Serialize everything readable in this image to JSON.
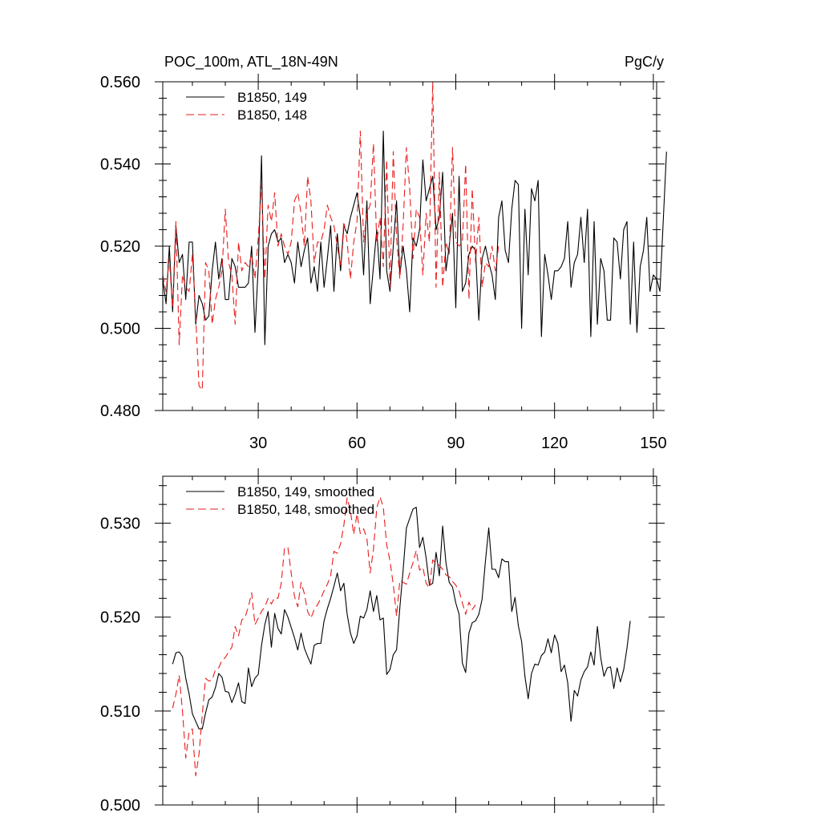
{
  "chart_data": [
    {
      "type": "line",
      "title": "POC_100m, ATL_18N-49N",
      "units": "PgC/y",
      "xlim": [
        1,
        151
      ],
      "ylim": [
        0.48,
        0.56
      ],
      "xticks": [
        30,
        60,
        90,
        120,
        150
      ],
      "yticks": [
        0.48,
        0.5,
        0.52,
        0.54,
        0.56
      ],
      "ytick_labels": [
        "0.480",
        "0.500",
        "0.520",
        "0.540",
        "0.560"
      ],
      "legend_position": "top-left",
      "series": [
        {
          "name": "B1850, 149",
          "color": "#000000",
          "dash": "solid",
          "x_start": 1,
          "values": [
            0.512,
            0.506,
            0.52,
            0.504,
            0.525,
            0.516,
            0.518,
            0.507,
            0.521,
            0.521,
            0.501,
            0.508,
            0.506,
            0.502,
            0.503,
            0.514,
            0.521,
            0.512,
            0.517,
            0.507,
            0.507,
            0.517,
            0.515,
            0.51,
            0.51,
            0.51,
            0.511,
            0.52,
            0.499,
            0.515,
            0.542,
            0.496,
            0.52,
            0.523,
            0.524,
            0.521,
            0.522,
            0.516,
            0.518,
            0.516,
            0.511,
            0.521,
            0.515,
            0.519,
            0.522,
            0.511,
            0.515,
            0.509,
            0.521,
            0.51,
            0.517,
            0.525,
            0.509,
            0.523,
            0.514,
            0.525,
            0.523,
            0.527,
            0.53,
            0.533,
            0.527,
            0.513,
            0.531,
            0.506,
            0.515,
            0.524,
            0.512,
            0.548,
            0.514,
            0.509,
            0.52,
            0.531,
            0.513,
            0.52,
            0.514,
            0.504,
            0.522,
            0.52,
            0.524,
            0.541,
            0.531,
            0.534,
            0.537,
            0.524,
            0.527,
            0.538,
            0.514,
            0.52,
            0.528,
            0.505,
            0.537,
            0.509,
            0.511,
            0.518,
            0.52,
            0.519,
            0.502,
            0.517,
            0.52,
            0.516,
            0.513,
            0.507,
            0.527,
            0.531,
            0.519,
            0.516,
            0.529,
            0.536,
            0.535,
            0.5,
            0.529,
            0.513,
            0.534,
            0.531,
            0.536,
            0.498,
            0.518,
            0.513,
            0.507,
            0.514,
            0.514,
            0.515,
            0.517,
            0.526,
            0.51,
            0.516,
            0.518,
            0.527,
            0.516,
            0.529,
            0.498,
            0.526,
            0.501,
            0.517,
            0.514,
            0.502,
            0.502,
            0.522,
            0.521,
            0.512,
            0.524,
            0.526,
            0.501,
            0.521,
            0.499,
            0.515,
            0.519,
            0.527,
            0.509,
            0.513,
            0.512,
            0.509,
            0.526,
            0.543
          ]
        },
        {
          "name": "B1850, 148",
          "color": "#e81c1c",
          "dash": "dashed",
          "x_start": 1,
          "values": [
            0.513,
            0.509,
            0.517,
            0.505,
            0.526,
            0.496,
            0.513,
            0.51,
            0.509,
            0.518,
            0.503,
            0.486,
            0.485,
            0.516,
            0.514,
            0.501,
            0.507,
            0.51,
            0.514,
            0.529,
            0.516,
            0.513,
            0.501,
            0.521,
            0.514,
            0.516,
            0.515,
            0.518,
            0.512,
            0.522,
            0.535,
            0.512,
            0.53,
            0.526,
            0.533,
            0.52,
            0.523,
            0.52,
            0.518,
            0.521,
            0.531,
            0.533,
            0.528,
            0.52,
            0.537,
            0.531,
            0.516,
            0.521,
            0.521,
            0.524,
            0.53,
            0.527,
            0.525,
            0.52,
            0.515,
            0.526,
            0.521,
            0.512,
            0.521,
            0.526,
            0.548,
            0.521,
            0.528,
            0.53,
            0.545,
            0.521,
            0.527,
            0.515,
            0.541,
            0.51,
            0.543,
            0.522,
            0.512,
            0.525,
            0.544,
            0.534,
            0.517,
            0.529,
            0.527,
            0.513,
            0.528,
            0.521,
            0.56,
            0.51,
            0.538,
            0.51,
            0.521,
            0.518,
            0.544,
            0.521,
            0.52,
            0.521,
            0.54,
            0.507,
            0.534,
            0.516,
            0.527,
            0.51,
            0.516,
            0.515,
            0.52,
            0.514,
            0.52
          ]
        }
      ]
    },
    {
      "type": "line",
      "xlim": [
        1,
        151
      ],
      "ylim": [
        0.5,
        0.535
      ],
      "xticks": [
        30,
        60,
        90,
        120,
        150
      ],
      "yticks": [
        0.5,
        0.51,
        0.52,
        0.53
      ],
      "ytick_labels": [
        "0.500",
        "0.510",
        "0.520",
        "0.530"
      ],
      "legend_position": "top-left",
      "series": [
        {
          "name": "B1850, 149, smoothed",
          "color": "#000000",
          "dash": "solid",
          "x_start": 4,
          "values": [
            0.515,
            0.5162,
            0.5163,
            0.5158,
            0.5135,
            0.5118,
            0.5097,
            0.5089,
            0.5081,
            0.5081,
            0.5098,
            0.5112,
            0.5115,
            0.5125,
            0.514,
            0.5136,
            0.5121,
            0.512,
            0.5109,
            0.5118,
            0.513,
            0.511,
            0.5108,
            0.5146,
            0.5126,
            0.5135,
            0.5139,
            0.517,
            0.5192,
            0.5206,
            0.5168,
            0.5204,
            0.5188,
            0.5182,
            0.5208,
            0.52,
            0.5189,
            0.5178,
            0.5165,
            0.5183,
            0.5167,
            0.5158,
            0.515,
            0.517,
            0.5172,
            0.5172,
            0.5196,
            0.5209,
            0.522,
            0.5233,
            0.5247,
            0.5228,
            0.5236,
            0.5203,
            0.5183,
            0.5172,
            0.518,
            0.5201,
            0.5199,
            0.5208,
            0.5228,
            0.5206,
            0.5223,
            0.5197,
            0.5199,
            0.5139,
            0.5144,
            0.516,
            0.5165,
            0.521,
            0.525,
            0.5295,
            0.5305,
            0.5315,
            0.5317,
            0.5274,
            0.5285,
            0.5263,
            0.5234,
            0.5236,
            0.5269,
            0.5244,
            0.5297,
            0.5258,
            0.5237,
            0.5232,
            0.5215,
            0.5203,
            0.5151,
            0.5141,
            0.5183,
            0.5194,
            0.5196,
            0.5203,
            0.5219,
            0.526,
            0.5295,
            0.5251,
            0.5251,
            0.5242,
            0.5262,
            0.5259,
            0.5259,
            0.5206,
            0.5221,
            0.5191,
            0.5174,
            0.5137,
            0.5113,
            0.514,
            0.515,
            0.5149,
            0.5159,
            0.5163,
            0.5177,
            0.5162,
            0.5181,
            0.5172,
            0.5142,
            0.5149,
            0.513,
            0.5089,
            0.5122,
            0.5116,
            0.5133,
            0.5142,
            0.5147,
            0.5163,
            0.5149,
            0.519,
            0.5157,
            0.5137,
            0.5146,
            0.5147,
            0.5124,
            0.5146,
            0.5131,
            0.5144,
            0.5167,
            0.5196
          ]
        },
        {
          "name": "B1850, 148, smoothed",
          "color": "#e81c1c",
          "dash": "dashed",
          "x_start": 4,
          "values": [
            0.5103,
            0.5118,
            0.5138,
            0.51,
            0.505,
            0.5078,
            0.5081,
            0.5031,
            0.5054,
            0.5096,
            0.5135,
            0.5132,
            0.5133,
            0.5144,
            0.5146,
            0.5154,
            0.5157,
            0.5163,
            0.5168,
            0.519,
            0.518,
            0.5197,
            0.52,
            0.5211,
            0.5226,
            0.5192,
            0.5199,
            0.5206,
            0.5211,
            0.522,
            0.5214,
            0.5221,
            0.522,
            0.5236,
            0.5274,
            0.5274,
            0.5247,
            0.5222,
            0.5211,
            0.5237,
            0.5225,
            0.5206,
            0.5199,
            0.5208,
            0.5213,
            0.522,
            0.5228,
            0.5235,
            0.5244,
            0.527,
            0.5268,
            0.5278,
            0.5298,
            0.5327,
            0.5313,
            0.5288,
            0.531,
            0.5289,
            0.5294,
            0.5284,
            0.5247,
            0.5272,
            0.5316,
            0.5328,
            0.5317,
            0.5277,
            0.526,
            0.5235,
            0.5201,
            0.5239,
            0.5237,
            0.5235,
            0.5247,
            0.5258,
            0.5271,
            0.525,
            0.5253,
            0.5236,
            0.5231,
            0.5261,
            0.5257,
            0.5255,
            0.5251,
            0.5245,
            0.5243,
            0.5238,
            0.5234,
            0.5228,
            0.5215,
            0.5203,
            0.5216,
            0.5208,
            0.5213
          ]
        }
      ]
    }
  ]
}
